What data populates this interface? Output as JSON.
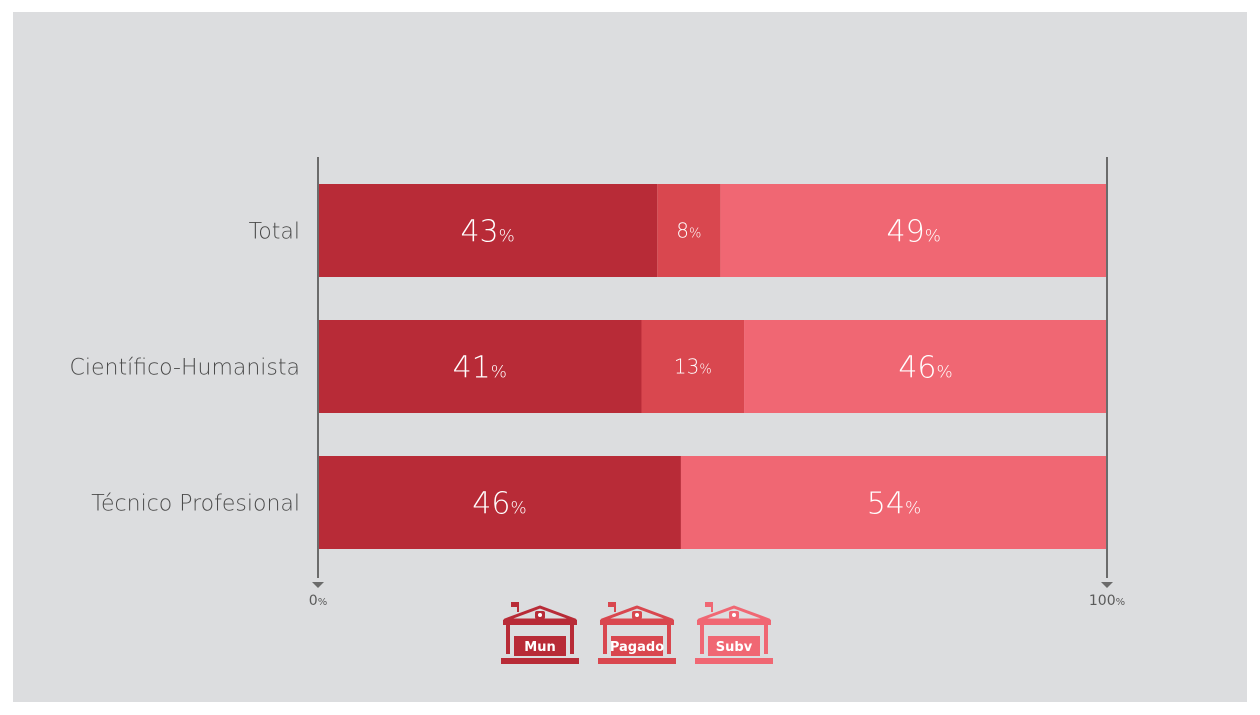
{
  "chart_data": {
    "type": "bar",
    "orientation": "horizontal",
    "stacked": true,
    "categories": [
      "Total",
      "Científico-Humanista",
      "Técnico Profesional"
    ],
    "series": [
      {
        "name": "Mun",
        "color": "#b82b37",
        "values": [
          43,
          41,
          46
        ]
      },
      {
        "name": "Pagado",
        "color": "#d9474f",
        "values": [
          8,
          13,
          0
        ]
      },
      {
        "name": "Subv",
        "color": "#f06773",
        "values": [
          49,
          46,
          54
        ]
      }
    ],
    "value_suffix": "%",
    "xlim": [
      0,
      100
    ],
    "x_ticks": [
      {
        "value": 0,
        "label": "0",
        "suffix": "%"
      },
      {
        "value": 100,
        "label": "100",
        "suffix": "%"
      }
    ],
    "legend_placement": "bottom-center",
    "grid": false
  },
  "colors": {
    "background": "#dcdddf",
    "axis": "#6b6b6b",
    "mun": "#b82b37",
    "pagado": "#d9474f",
    "subv": "#f06773"
  },
  "legend_icon": "school-building-icon"
}
